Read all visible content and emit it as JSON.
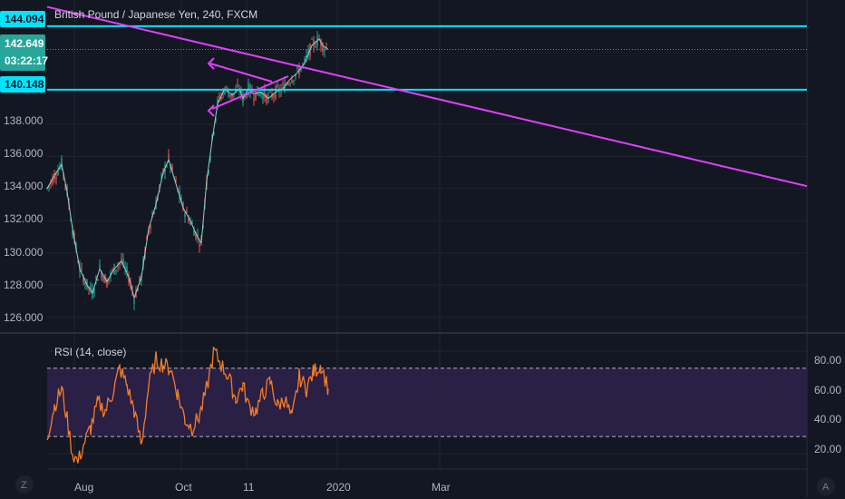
{
  "header": {
    "title": "British Pound / Japanese Yen, 240, FXCM"
  },
  "price_pane": {
    "y_ticks": [
      "138.000",
      "136.000",
      "134.000",
      "132.000",
      "130.000",
      "128.000",
      "126.000"
    ],
    "tags": {
      "resistance": "144.094",
      "current_price": "142.649",
      "countdown": "03:22:17",
      "support": "140.148"
    },
    "colors": {
      "horizontal_lines": "#00e5ff",
      "trend_lines": "#e040fb",
      "price_tag": "#26a69a"
    }
  },
  "rsi_pane": {
    "label": "RSI (14, close)",
    "y_ticks": [
      "80.00",
      "60.00",
      "40.00",
      "20.00"
    ],
    "colors": {
      "line": "#f57c29",
      "band": "#2a1f44"
    }
  },
  "x_axis": {
    "labels": [
      "Aug",
      "Oct",
      "11",
      "2020",
      "Mar"
    ]
  },
  "buttons": {
    "zoom": "Z",
    "auto": "A"
  },
  "chart_data": [
    {
      "type": "line",
      "title": "British Pound / Japanese Yen, 240, FXCM",
      "xlabel": "",
      "ylabel": "",
      "ylim": [
        125.3,
        145.5
      ],
      "x": [
        0,
        8,
        16,
        22,
        28,
        36,
        44,
        50,
        58,
        66,
        74,
        82,
        90,
        96,
        104,
        112,
        120,
        128,
        134,
        142,
        150,
        158,
        164,
        170,
        176,
        182,
        188,
        196,
        204,
        212,
        216,
        222,
        228,
        236,
        244,
        252,
        260,
        268,
        276,
        284,
        292,
        300,
        304,
        310
      ],
      "series": [
        {
          "name": "GBP/JPY",
          "values": [
            134.0,
            134.8,
            135.5,
            133.8,
            131.5,
            129.0,
            128.0,
            127.5,
            129.0,
            128.2,
            129.0,
            129.5,
            128.5,
            127.2,
            128.5,
            131.5,
            133.0,
            135.0,
            135.8,
            134.3,
            132.8,
            132.0,
            131.2,
            130.6,
            134.5,
            137.0,
            139.3,
            140.2,
            139.8,
            140.2,
            139.6,
            140.2,
            139.9,
            140.0,
            139.6,
            140.0,
            140.2,
            140.8,
            141.2,
            141.8,
            142.9,
            143.3,
            142.9,
            142.65
          ]
        }
      ],
      "horizontal_levels": [
        144.094,
        140.148
      ],
      "trend_line": {
        "from_price": 145.3,
        "to_price": 134.15
      }
    },
    {
      "type": "line",
      "title": "RSI (14, close)",
      "ylim": [
        12,
        88
      ],
      "x": [
        0,
        8,
        16,
        22,
        28,
        34,
        40,
        48,
        56,
        64,
        72,
        80,
        88,
        96,
        104,
        112,
        120,
        128,
        136,
        144,
        152,
        160,
        168,
        176,
        184,
        192,
        200,
        208,
        216,
        222,
        230,
        238,
        246,
        254,
        262,
        270,
        278,
        286,
        294,
        302,
        310
      ],
      "series": [
        {
          "name": "RSI",
          "values": [
            30,
            48,
            58,
            40,
            20,
            15,
            25,
            35,
            50,
            45,
            55,
            70,
            60,
            45,
            25,
            60,
            75,
            72,
            70,
            55,
            40,
            35,
            42,
            58,
            80,
            72,
            65,
            52,
            60,
            48,
            45,
            55,
            62,
            48,
            52,
            40,
            65,
            58,
            68,
            72,
            58
          ]
        }
      ],
      "bands": [
        70,
        30
      ]
    }
  ]
}
